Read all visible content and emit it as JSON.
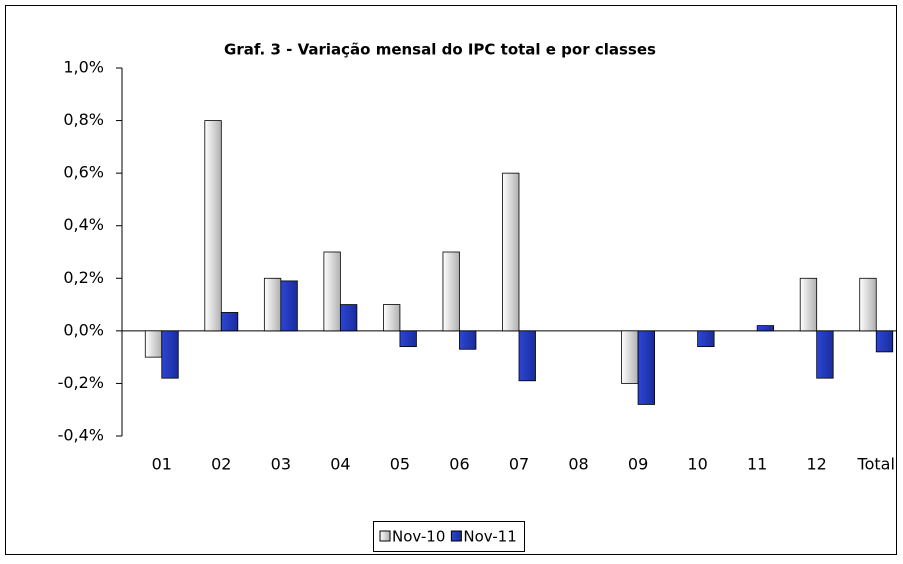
{
  "chart_data": {
    "type": "bar",
    "title": "Graf. 3 - Variação mensal do IPC total e por classes",
    "categories": [
      "01",
      "02",
      "03",
      "04",
      "05",
      "06",
      "07",
      "08",
      "09",
      "10",
      "11",
      "12",
      "Total"
    ],
    "series": [
      {
        "name": "Nov-10",
        "color": "#b0b0b0",
        "values": [
          -0.1,
          0.8,
          0.2,
          0.3,
          0.1,
          0.3,
          0.6,
          0,
          -0.2,
          0,
          0,
          0.2,
          0.2
        ]
      },
      {
        "name": "Nov-11",
        "color": "#2c46d6",
        "values": [
          -0.18,
          0.07,
          0.19,
          0.1,
          -0.06,
          -0.07,
          -0.19,
          0,
          -0.28,
          -0.06,
          0.02,
          -0.18,
          -0.08
        ]
      }
    ],
    "ylim": [
      -0.4,
      1.0
    ],
    "yticks": [
      {
        "value": -0.4,
        "label": "-0,4%"
      },
      {
        "value": -0.2,
        "label": "-0,2%"
      },
      {
        "value": 0,
        "label": "0,0%"
      },
      {
        "value": 0.2,
        "label": "0,2%"
      },
      {
        "value": 0.4,
        "label": "0,4%"
      },
      {
        "value": 0.6,
        "label": "0,6%"
      },
      {
        "value": 0.8,
        "label": "0,8%"
      },
      {
        "value": 1.0,
        "label": "1,0%"
      }
    ],
    "grid": false,
    "legend": "bottom"
  }
}
